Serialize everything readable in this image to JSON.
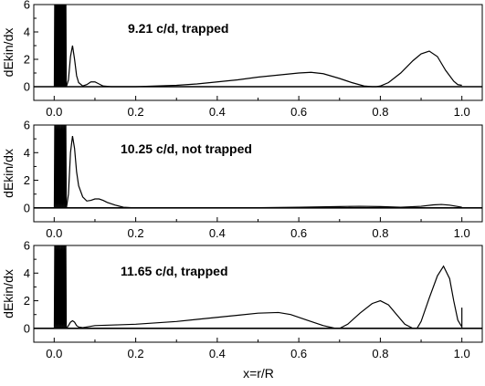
{
  "chart_data": [
    {
      "type": "line",
      "annotation": "9.21 c/d, trapped",
      "ylabel": "dEkin/dx",
      "xlim": [
        -0.05,
        1.05
      ],
      "ylim": [
        -1,
        6
      ],
      "yticks": [
        0,
        2,
        4,
        6
      ],
      "xticks": [
        0.0,
        0.2,
        0.4,
        0.6,
        0.8,
        1.0
      ],
      "tick_labels_x": [
        "0.0",
        "0.2",
        "0.4",
        "0.6",
        "0.8",
        "1.0"
      ],
      "tick_labels_y": [
        "0",
        "2",
        "4",
        "6"
      ],
      "series": [
        {
          "oscillation": {
            "from": 0.0,
            "to": 0.03,
            "count": 16,
            "max": 6
          },
          "x": [
            0.03,
            0.035,
            0.04,
            0.045,
            0.05,
            0.055,
            0.06,
            0.07,
            0.08,
            0.09,
            0.1,
            0.11,
            0.12,
            0.14,
            0.16,
            0.2,
            0.25,
            0.3,
            0.35,
            0.4,
            0.45,
            0.5,
            0.55,
            0.6,
            0.63,
            0.66,
            0.7,
            0.73,
            0.76,
            0.78,
            0.79,
            0.8,
            0.82,
            0.85,
            0.88,
            0.9,
            0.92,
            0.94,
            0.96,
            0.98,
            0.99,
            1.0
          ],
          "y": [
            0.0,
            0.5,
            2.2,
            3.0,
            2.0,
            0.8,
            0.3,
            0.05,
            0.15,
            0.35,
            0.35,
            0.2,
            0.05,
            0.0,
            0.0,
            0.0,
            0.05,
            0.1,
            0.2,
            0.35,
            0.5,
            0.7,
            0.85,
            1.0,
            1.05,
            0.95,
            0.6,
            0.3,
            0.05,
            0.0,
            0.0,
            0.05,
            0.3,
            1.0,
            1.9,
            2.4,
            2.6,
            2.2,
            1.2,
            0.4,
            0.15,
            0.1
          ]
        }
      ]
    },
    {
      "type": "line",
      "annotation": "10.25 c/d, not trapped",
      "ylabel": "dEkin/dx",
      "xlim": [
        -0.05,
        1.05
      ],
      "ylim": [
        -1,
        6
      ],
      "yticks": [
        0,
        2,
        4,
        6
      ],
      "xticks": [
        0.0,
        0.2,
        0.4,
        0.6,
        0.8,
        1.0
      ],
      "tick_labels_x": [
        "0.0",
        "0.2",
        "0.4",
        "0.6",
        "0.8",
        "1.0"
      ],
      "tick_labels_y": [
        "0",
        "2",
        "4",
        "6"
      ],
      "series": [
        {
          "oscillation": {
            "from": 0.0,
            "to": 0.03,
            "count": 14,
            "max": 6
          },
          "x": [
            0.03,
            0.035,
            0.04,
            0.045,
            0.05,
            0.055,
            0.06,
            0.07,
            0.08,
            0.09,
            0.1,
            0.11,
            0.12,
            0.13,
            0.15,
            0.17,
            0.2,
            0.25,
            0.3,
            0.4,
            0.5,
            0.6,
            0.7,
            0.75,
            0.8,
            0.85,
            0.9,
            0.93,
            0.95,
            0.97,
            0.99,
            1.0
          ],
          "y": [
            0.0,
            1.0,
            4.0,
            5.2,
            4.3,
            2.6,
            1.6,
            0.8,
            0.5,
            0.55,
            0.65,
            0.65,
            0.55,
            0.4,
            0.2,
            0.05,
            0.0,
            0.0,
            0.0,
            0.0,
            0.02,
            0.05,
            0.1,
            0.12,
            0.1,
            0.05,
            0.12,
            0.22,
            0.25,
            0.2,
            0.1,
            0.05
          ]
        }
      ]
    },
    {
      "type": "line",
      "annotation": "11.65 c/d, trapped",
      "ylabel": "dEkin/dx",
      "xlabel": "x=r/R",
      "xlim": [
        -0.05,
        1.05
      ],
      "ylim": [
        -1,
        6
      ],
      "yticks": [
        0,
        2,
        4,
        6
      ],
      "xticks": [
        0.0,
        0.2,
        0.4,
        0.6,
        0.8,
        1.0
      ],
      "tick_labels_x": [
        "0.0",
        "0.2",
        "0.4",
        "0.6",
        "0.8",
        "1.0"
      ],
      "tick_labels_y": [
        "0",
        "2",
        "4",
        "6"
      ],
      "series": [
        {
          "oscillation": {
            "from": 0.0,
            "to": 0.03,
            "count": 14,
            "max": 6
          },
          "x": [
            0.03,
            0.035,
            0.04,
            0.045,
            0.05,
            0.055,
            0.06,
            0.07,
            0.08,
            0.1,
            0.15,
            0.2,
            0.25,
            0.3,
            0.35,
            0.4,
            0.45,
            0.5,
            0.55,
            0.58,
            0.62,
            0.66,
            0.69,
            0.7,
            0.72,
            0.75,
            0.78,
            0.8,
            0.82,
            0.84,
            0.86,
            0.88,
            0.89,
            0.9,
            0.92,
            0.94,
            0.955,
            0.97,
            0.98,
            0.99,
            1.0,
            1.0
          ],
          "y": [
            0.0,
            0.2,
            0.45,
            0.55,
            0.45,
            0.2,
            0.1,
            0.05,
            0.1,
            0.2,
            0.25,
            0.3,
            0.4,
            0.5,
            0.65,
            0.8,
            0.95,
            1.1,
            1.15,
            1.0,
            0.6,
            0.2,
            0.0,
            0.0,
            0.3,
            1.1,
            1.8,
            2.0,
            1.7,
            1.0,
            0.3,
            0.0,
            0.0,
            0.5,
            2.2,
            3.8,
            4.5,
            3.6,
            2.0,
            0.6,
            0.1,
            1.5
          ]
        }
      ]
    }
  ]
}
